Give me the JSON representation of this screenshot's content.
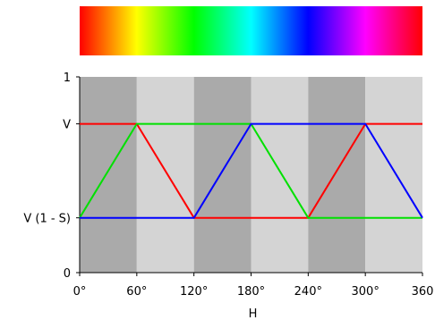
{
  "chart_data": {
    "type": "line",
    "title": "",
    "xlabel": "H",
    "ylabel": "",
    "xlim": [
      0,
      360
    ],
    "ylim": [
      0,
      1
    ],
    "grid": false,
    "x_ticks": [
      {
        "value": 0,
        "label": "0°"
      },
      {
        "value": 60,
        "label": "60°"
      },
      {
        "value": 120,
        "label": "120°"
      },
      {
        "value": 180,
        "label": "180°"
      },
      {
        "value": 240,
        "label": "240°"
      },
      {
        "value": 300,
        "label": "300°"
      },
      {
        "value": 360,
        "label": "360"
      }
    ],
    "y_ticks": [
      {
        "value": 0,
        "label": "0"
      },
      {
        "value": 0.28,
        "label": "V (1 - S)"
      },
      {
        "value": 0.76,
        "label": "V"
      },
      {
        "value": 1,
        "label": "1"
      }
    ],
    "bands": [
      {
        "from": 0,
        "to": 60,
        "shade": "dark"
      },
      {
        "from": 60,
        "to": 120,
        "shade": "light"
      },
      {
        "from": 120,
        "to": 180,
        "shade": "dark"
      },
      {
        "from": 180,
        "to": 240,
        "shade": "light"
      },
      {
        "from": 240,
        "to": 300,
        "shade": "dark"
      },
      {
        "from": 300,
        "to": 360,
        "shade": "light"
      }
    ],
    "band_colors": {
      "dark": "#aaaaaa",
      "light": "#d4d4d4"
    },
    "hue_bar": true,
    "series": [
      {
        "color": "#ff0000",
        "x": [
          0,
          60,
          120,
          180,
          240,
          300,
          360
        ],
        "y": [
          0.76,
          0.76,
          0.28,
          0.28,
          0.28,
          0.76,
          0.76
        ]
      },
      {
        "color": "#00e000",
        "x": [
          0,
          60,
          120,
          180,
          240,
          300,
          360
        ],
        "y": [
          0.28,
          0.76,
          0.76,
          0.76,
          0.28,
          0.28,
          0.28
        ]
      },
      {
        "color": "#0000ff",
        "x": [
          0,
          60,
          120,
          180,
          240,
          300,
          360
        ],
        "y": [
          0.28,
          0.28,
          0.28,
          0.76,
          0.76,
          0.76,
          0.28
        ]
      }
    ]
  }
}
